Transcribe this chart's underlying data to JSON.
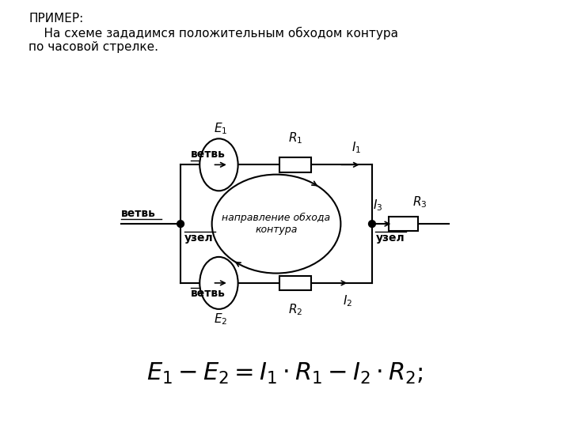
{
  "title_text": "ПРИМЕР:\n    На схеме зададимся положительным обходом контура\nпо часовой стрелке.",
  "formula": "$E_1 - E_2 = I_1 \\cdot R_1 - I_2 \\cdot R_2;$",
  "bg_color": "#ffffff",
  "line_color": "#000000",
  "label_vetv1": "ветвь",
  "label_vetv2": "ветвь",
  "label_vetv3": "ветвь",
  "label_uzel1": "узел",
  "label_uzel2": "узел",
  "label_E1": "$E_1$",
  "label_E2": "$E_2$",
  "label_R1": "$R_1$",
  "label_R2": "$R_2$",
  "label_R3": "$R_3$",
  "label_I1": "$I_1$",
  "label_I2": "$I_2$",
  "label_I3": "$I_3$",
  "label_direction": "направление обхода\nконтура"
}
